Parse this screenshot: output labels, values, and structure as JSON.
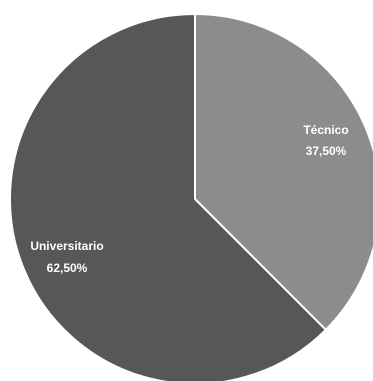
{
  "chart_data": {
    "type": "pie",
    "categories": [
      "Técnico",
      "Universitario"
    ],
    "values": [
      37.5,
      62.5
    ],
    "value_labels": [
      "37,50%",
      "62,50%"
    ],
    "colors": [
      "#8c8c8c",
      "#575757"
    ],
    "border_color": "#ffffff",
    "start": "12 o'clock, clockwise",
    "legend": "none"
  }
}
